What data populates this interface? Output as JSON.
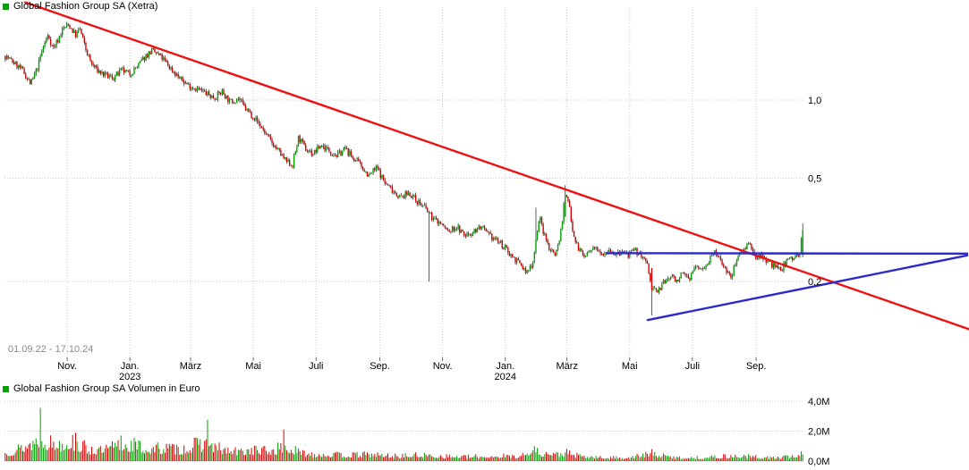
{
  "chart_data": [
    {
      "type": "candlestick",
      "title": "Global Fashion Group SA (Xetra)",
      "date_range_label": "01.09.22 - 17.10.24",
      "legend_color": "#00a400",
      "y_scale": "log",
      "y_ticks": [
        {
          "label": "1,0",
          "value": 1.0
        },
        {
          "label": "0,5",
          "value": 0.5
        },
        {
          "label": "0,2",
          "value": 0.2
        }
      ],
      "x_ticks": [
        {
          "label": "Nov.",
          "f": 0.0785
        },
        {
          "label": "Jan.",
          "f": 0.157
        },
        {
          "label": "März",
          "f": 0.2329
        },
        {
          "label": "Mai",
          "f": 0.3114
        },
        {
          "label": "Juli",
          "f": 0.39
        },
        {
          "label": "Sep.",
          "f": 0.4698
        },
        {
          "label": "Nov.",
          "f": 0.5483
        },
        {
          "label": "Jan.",
          "f": 0.6268
        },
        {
          "label": "März",
          "f": 0.704
        },
        {
          "label": "Mai",
          "f": 0.7825
        },
        {
          "label": "Juli",
          "f": 0.861
        },
        {
          "label": "Sep.",
          "f": 0.9408
        }
      ],
      "year_labels": [
        {
          "label": "2023",
          "f": 0.157
        },
        {
          "label": "2024",
          "f": 0.6268
        }
      ],
      "colors": {
        "up": "#00a000",
        "down": "#d40000",
        "wick": "#1a1a1a"
      },
      "candle_count": 545,
      "price_path": [
        [
          0.0,
          1.48
        ],
        [
          0.01,
          1.4
        ],
        [
          0.022,
          1.3
        ],
        [
          0.032,
          1.15
        ],
        [
          0.04,
          1.32
        ],
        [
          0.048,
          1.62
        ],
        [
          0.054,
          1.78
        ],
        [
          0.06,
          1.58
        ],
        [
          0.066,
          1.7
        ],
        [
          0.072,
          1.88
        ],
        [
          0.08,
          1.95
        ],
        [
          0.088,
          1.78
        ],
        [
          0.094,
          1.88
        ],
        [
          0.1,
          1.6
        ],
        [
          0.108,
          1.38
        ],
        [
          0.116,
          1.3
        ],
        [
          0.126,
          1.24
        ],
        [
          0.136,
          1.22
        ],
        [
          0.146,
          1.3
        ],
        [
          0.156,
          1.26
        ],
        [
          0.166,
          1.35
        ],
        [
          0.176,
          1.48
        ],
        [
          0.184,
          1.55
        ],
        [
          0.196,
          1.46
        ],
        [
          0.208,
          1.32
        ],
        [
          0.22,
          1.2
        ],
        [
          0.23,
          1.14
        ],
        [
          0.242,
          1.1
        ],
        [
          0.252,
          1.06
        ],
        [
          0.262,
          1.02
        ],
        [
          0.272,
          1.08
        ],
        [
          0.282,
          0.98
        ],
        [
          0.292,
          1.02
        ],
        [
          0.302,
          0.92
        ],
        [
          0.312,
          0.86
        ],
        [
          0.322,
          0.78
        ],
        [
          0.332,
          0.7
        ],
        [
          0.342,
          0.64
        ],
        [
          0.352,
          0.58
        ],
        [
          0.36,
          0.56
        ],
        [
          0.368,
          0.72
        ],
        [
          0.376,
          0.65
        ],
        [
          0.386,
          0.62
        ],
        [
          0.396,
          0.67
        ],
        [
          0.406,
          0.64
        ],
        [
          0.416,
          0.61
        ],
        [
          0.426,
          0.65
        ],
        [
          0.436,
          0.6
        ],
        [
          0.446,
          0.56
        ],
        [
          0.456,
          0.51
        ],
        [
          0.466,
          0.55
        ],
        [
          0.476,
          0.48
        ],
        [
          0.486,
          0.45
        ],
        [
          0.496,
          0.42
        ],
        [
          0.506,
          0.44
        ],
        [
          0.516,
          0.41
        ],
        [
          0.526,
          0.385
        ],
        [
          0.536,
          0.35
        ],
        [
          0.546,
          0.335
        ],
        [
          0.556,
          0.31
        ],
        [
          0.566,
          0.325
        ],
        [
          0.576,
          0.3
        ],
        [
          0.586,
          0.31
        ],
        [
          0.596,
          0.325
        ],
        [
          0.606,
          0.3
        ],
        [
          0.616,
          0.29
        ],
        [
          0.626,
          0.27
        ],
        [
          0.636,
          0.25
        ],
        [
          0.646,
          0.232
        ],
        [
          0.654,
          0.215
        ],
        [
          0.662,
          0.24
        ],
        [
          0.666,
          0.3
        ],
        [
          0.67,
          0.355
        ],
        [
          0.676,
          0.3
        ],
        [
          0.682,
          0.27
        ],
        [
          0.69,
          0.255
        ],
        [
          0.696,
          0.3
        ],
        [
          0.702,
          0.43
        ],
        [
          0.707,
          0.4
        ],
        [
          0.712,
          0.31
        ],
        [
          0.718,
          0.27
        ],
        [
          0.726,
          0.25
        ],
        [
          0.734,
          0.26
        ],
        [
          0.742,
          0.27
        ],
        [
          0.75,
          0.258
        ],
        [
          0.758,
          0.266
        ],
        [
          0.766,
          0.252
        ],
        [
          0.774,
          0.26
        ],
        [
          0.782,
          0.252
        ],
        [
          0.79,
          0.262
        ],
        [
          0.798,
          0.252
        ],
        [
          0.806,
          0.228
        ],
        [
          0.81,
          0.19
        ],
        [
          0.818,
          0.183
        ],
        [
          0.826,
          0.198
        ],
        [
          0.834,
          0.21
        ],
        [
          0.842,
          0.203
        ],
        [
          0.85,
          0.213
        ],
        [
          0.858,
          0.207
        ],
        [
          0.866,
          0.228
        ],
        [
          0.874,
          0.222
        ],
        [
          0.882,
          0.242
        ],
        [
          0.89,
          0.258
        ],
        [
          0.896,
          0.243
        ],
        [
          0.902,
          0.228
        ],
        [
          0.91,
          0.205
        ],
        [
          0.918,
          0.252
        ],
        [
          0.926,
          0.268
        ],
        [
          0.932,
          0.283
        ],
        [
          0.94,
          0.244
        ],
        [
          0.948,
          0.256
        ],
        [
          0.956,
          0.238
        ],
        [
          0.964,
          0.23
        ],
        [
          0.972,
          0.219
        ],
        [
          0.98,
          0.241
        ],
        [
          0.988,
          0.248
        ],
        [
          0.996,
          0.258
        ],
        [
          1.0,
          0.315
        ]
      ],
      "special_candles": [
        {
          "f": 0.531,
          "l": 0.2
        },
        {
          "f": 0.665,
          "h": 0.385
        },
        {
          "f": 0.702,
          "o": 0.355,
          "c": 0.43,
          "h": 0.47
        },
        {
          "f": 0.81,
          "o": 0.225,
          "c": 0.185,
          "l": 0.148
        },
        {
          "f": 1.0,
          "o": 0.253,
          "c": 0.315,
          "h": 0.335,
          "l": 0.248
        }
      ],
      "trendlines": [
        {
          "name": "downtrend-resistance-line",
          "color": "#ee1111",
          "width": 2.4,
          "points": [
            [
              0.026,
              2.38
            ],
            [
              1.207,
              0.131
            ]
          ]
        },
        {
          "name": "horizontal-resistance-line",
          "color": "#2b2bcc",
          "width": 2.4,
          "points": [
            [
              0.7537,
              0.257
            ],
            [
              1.205,
              0.256
            ]
          ]
        },
        {
          "name": "rising-support-line",
          "color": "#2b2bcc",
          "width": 2.4,
          "points": [
            [
              0.805,
              0.142
            ],
            [
              1.205,
              0.252
            ]
          ]
        }
      ]
    },
    {
      "type": "bar",
      "title": "Global Fashion Group SA Volumen in Euro",
      "legend_color": "#00a400",
      "y_ticks": [
        {
          "label": "4,0M",
          "value": 4.0
        },
        {
          "label": "2,0M",
          "value": 2.0
        },
        {
          "label": "0,0M",
          "value": 0.0
        }
      ],
      "bar_count": 545,
      "volume_path": [
        [
          0.0,
          0.5
        ],
        [
          0.02,
          0.8
        ],
        [
          0.045,
          1.5
        ],
        [
          0.06,
          1.0
        ],
        [
          0.08,
          1.2
        ],
        [
          0.1,
          0.8
        ],
        [
          0.12,
          0.6
        ],
        [
          0.14,
          0.95
        ],
        [
          0.16,
          1.0
        ],
        [
          0.18,
          0.7
        ],
        [
          0.2,
          0.8
        ],
        [
          0.22,
          0.7
        ],
        [
          0.25,
          1.1
        ],
        [
          0.27,
          0.7
        ],
        [
          0.29,
          0.55
        ],
        [
          0.31,
          0.7
        ],
        [
          0.33,
          0.6
        ],
        [
          0.35,
          0.85
        ],
        [
          0.37,
          0.5
        ],
        [
          0.4,
          0.4
        ],
        [
          0.43,
          0.35
        ],
        [
          0.46,
          0.4
        ],
        [
          0.49,
          0.3
        ],
        [
          0.52,
          0.35
        ],
        [
          0.55,
          0.3
        ],
        [
          0.58,
          0.25
        ],
        [
          0.61,
          0.3
        ],
        [
          0.64,
          0.3
        ],
        [
          0.665,
          0.55
        ],
        [
          0.69,
          0.4
        ],
        [
          0.705,
          0.5
        ],
        [
          0.72,
          0.3
        ],
        [
          0.75,
          0.2
        ],
        [
          0.78,
          0.22
        ],
        [
          0.81,
          0.45
        ],
        [
          0.84,
          0.22
        ],
        [
          0.87,
          0.2
        ],
        [
          0.9,
          0.28
        ],
        [
          0.92,
          0.3
        ],
        [
          0.95,
          0.22
        ],
        [
          0.97,
          0.2
        ],
        [
          1.0,
          0.45
        ]
      ],
      "special_bars": [
        {
          "f": 0.045,
          "v": 3.55
        },
        {
          "f": 0.089,
          "v": 1.9
        },
        {
          "f": 0.145,
          "v": 1.7
        },
        {
          "f": 0.253,
          "v": 2.75
        },
        {
          "f": 0.35,
          "v": 2.1
        },
        {
          "f": 0.663,
          "v": 1.0
        },
        {
          "f": 0.81,
          "v": 0.8
        },
        {
          "f": 0.998,
          "v": 0.65
        }
      ]
    }
  ]
}
